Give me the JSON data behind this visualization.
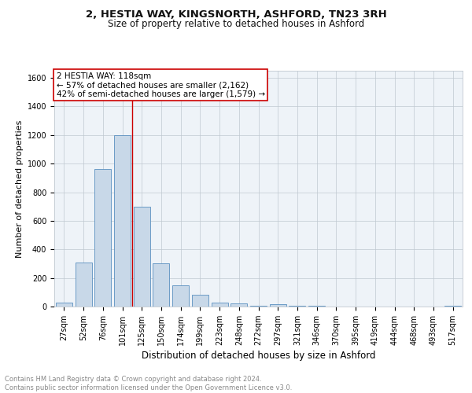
{
  "title1": "2, HESTIA WAY, KINGSNORTH, ASHFORD, TN23 3RH",
  "title2": "Size of property relative to detached houses in Ashford",
  "xlabel": "Distribution of detached houses by size in Ashford",
  "ylabel": "Number of detached properties",
  "categories": [
    "27sqm",
    "52sqm",
    "76sqm",
    "101sqm",
    "125sqm",
    "150sqm",
    "174sqm",
    "199sqm",
    "223sqm",
    "248sqm",
    "272sqm",
    "297sqm",
    "321sqm",
    "346sqm",
    "370sqm",
    "395sqm",
    "419sqm",
    "444sqm",
    "468sqm",
    "493sqm",
    "517sqm"
  ],
  "values": [
    25,
    310,
    960,
    1200,
    700,
    300,
    150,
    80,
    30,
    20,
    5,
    15,
    3,
    8,
    0,
    2,
    0,
    0,
    0,
    0,
    8
  ],
  "bar_color": "#c8d8e8",
  "bar_edge_color": "#5a8fc0",
  "vline_color": "#cc0000",
  "vline_x": 3.5,
  "annotation_text": "2 HESTIA WAY: 118sqm\n← 57% of detached houses are smaller (2,162)\n42% of semi-detached houses are larger (1,579) →",
  "annotation_box_color": "#ffffff",
  "annotation_box_edge": "#cc0000",
  "ylim": [
    0,
    1650
  ],
  "yticks": [
    0,
    200,
    400,
    600,
    800,
    1000,
    1200,
    1400,
    1600
  ],
  "footer_text": "Contains HM Land Registry data © Crown copyright and database right 2024.\nContains public sector information licensed under the Open Government Licence v3.0.",
  "bg_color": "#ffffff",
  "plot_bg_color": "#eef3f8",
  "grid_color": "#c0c8d0",
  "title1_fontsize": 9.5,
  "title2_fontsize": 8.5,
  "xlabel_fontsize": 8.5,
  "ylabel_fontsize": 8,
  "tick_fontsize": 7,
  "ann_fontsize": 7.5,
  "footer_fontsize": 6
}
